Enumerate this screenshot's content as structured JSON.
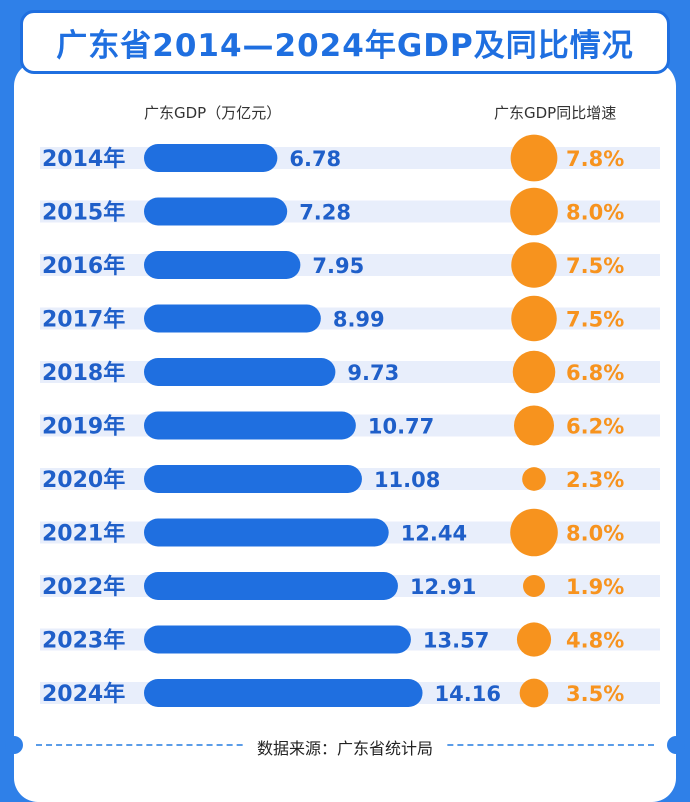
{
  "title": "广东省2014—2024年GDP及同比情况",
  "col_gdp_label": "广东GDP（万亿元）",
  "col_growth_label": "广东GDP同比增速",
  "source": "数据来源：广东省统计局",
  "colors": {
    "bar": "#1f6fe0",
    "value": "#1f5fc9",
    "bubble": "#f7931e",
    "growth": "#f7931e",
    "stripe": "#e8eefb",
    "year": "#1f5fc9"
  },
  "chart_data": {
    "type": "bar",
    "orientation": "horizontal",
    "categories": [
      "2014年",
      "2015年",
      "2016年",
      "2017年",
      "2018年",
      "2019年",
      "2020年",
      "2021年",
      "2022年",
      "2023年",
      "2024年"
    ],
    "series": [
      {
        "name": "广东GDP（万亿元）",
        "values": [
          6.78,
          7.28,
          7.95,
          8.99,
          9.73,
          10.77,
          11.08,
          12.44,
          12.91,
          13.57,
          14.16
        ]
      },
      {
        "name": "广东GDP同比增速",
        "values": [
          7.8,
          8.0,
          7.5,
          7.5,
          6.8,
          6.2,
          2.3,
          8.0,
          1.9,
          4.8,
          3.5
        ]
      }
    ],
    "gdp_labels": [
      "6.78",
      "7.28",
      "7.95",
      "8.99",
      "9.73",
      "10.77",
      "11.08",
      "12.44",
      "12.91",
      "13.57",
      "14.16"
    ],
    "growth_labels": [
      "7.8%",
      "8.0%",
      "7.5%",
      "7.5%",
      "6.8%",
      "6.2%",
      "2.3%",
      "8.0%",
      "1.9%",
      "4.8%",
      "3.5%"
    ],
    "grid": false
  }
}
